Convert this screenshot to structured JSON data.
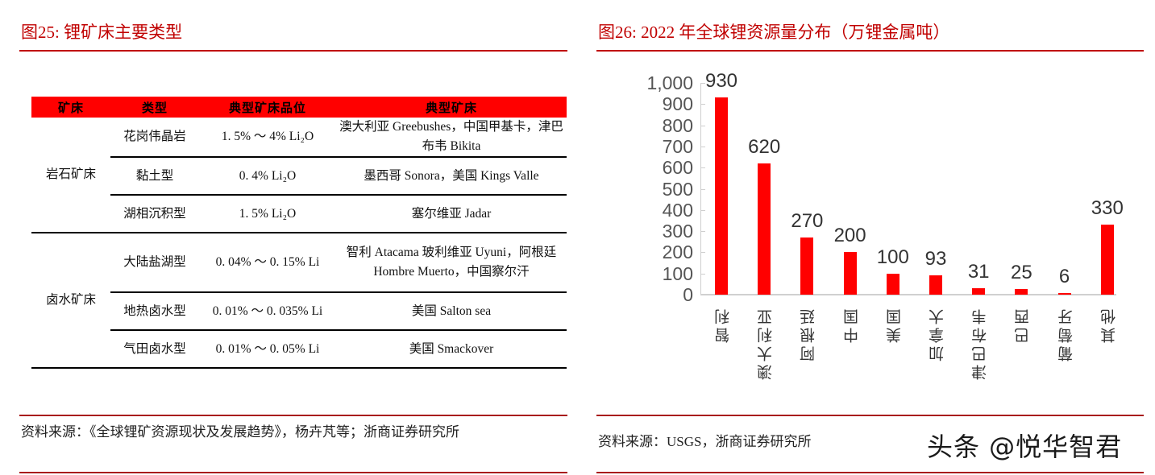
{
  "left_panel": {
    "title": "图25:   锂矿床主要类型",
    "table": {
      "headers": [
        "矿床",
        "类型",
        "典型矿床品位",
        "典型矿床"
      ],
      "groups": [
        {
          "deposit": "岩石矿床",
          "rows": [
            {
              "type": "花岗伟晶岩",
              "grade": "1. 5% ～ 4% Li₂O",
              "typical": "澳大利亚 Greebushes，中国甲基卡，津巴布韦 Bikita"
            },
            {
              "type": "黏土型",
              "grade": "0. 4% Li₂O",
              "typical": "墨西哥 Sonora，美国 Kings Valle"
            },
            {
              "type": "湖相沉积型",
              "grade": "1. 5% Li₂O",
              "typical": "塞尔维亚 Jadar"
            }
          ]
        },
        {
          "deposit": "卤水矿床",
          "rows": [
            {
              "type": "大陆盐湖型",
              "grade": "0. 04% ～ 0. 15% Li",
              "typical": "智利 Atacama 玻利维亚 Uyuni，阿根廷 Hombre Muerto，中国察尔汗"
            },
            {
              "type": "地热卤水型",
              "grade": "0. 01% ～ 0. 035% Li",
              "typical": "美国 Salton sea"
            },
            {
              "type": "气田卤水型",
              "grade": "0. 01% ～ 0. 05% Li",
              "typical": "美国 Smackover"
            }
          ]
        }
      ]
    },
    "source": "资料来源：《全球锂矿资源现状及发展趋势》，杨卉芃等；浙商证券研究所"
  },
  "right_panel": {
    "title": "图26:   2022 年全球锂资源量分布（万锂金属吨）",
    "source": "资料来源：USGS，浙商证券研究所",
    "watermark": "头条 @悦华智君"
  },
  "chart_data": {
    "type": "bar",
    "title": "2022 年全球锂资源量分布（万锂金属吨）",
    "xlabel": "",
    "ylabel": "",
    "categories": [
      "智利",
      "澳大利亚",
      "阿根廷",
      "中国",
      "美国",
      "加拿大",
      "津巴布韦",
      "巴西",
      "葡萄牙",
      "其他"
    ],
    "values": [
      930,
      620,
      270,
      200,
      100,
      93,
      31,
      25,
      6,
      330
    ],
    "value_labels": [
      "930",
      "620",
      "270",
      "200",
      "100",
      "93",
      "31",
      "25",
      "6",
      "330"
    ],
    "ylim": [
      0,
      1000
    ],
    "yticks": [
      "0",
      "100",
      "200",
      "300",
      "400",
      "500",
      "600",
      "700",
      "800",
      "900",
      "1,000"
    ],
    "grid": false,
    "legend": null,
    "bar_color": "#ff0000"
  }
}
